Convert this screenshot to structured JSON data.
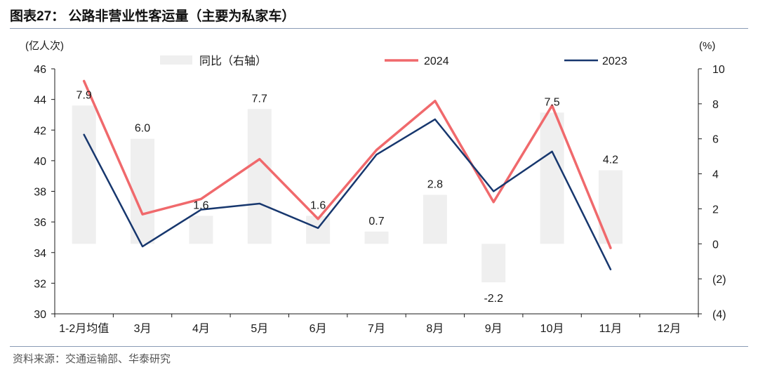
{
  "title": "图表27： 公路非营业性客运量（主要为私家车）",
  "source": "资料来源：交通运输部、华泰研究",
  "colors": {
    "series_2024": "#f0696c",
    "series_2023": "#17376e",
    "bars": "#efefef",
    "axis": "#1a1a1a",
    "rule": "#8a9bb5"
  },
  "chart_data": {
    "type": "bar+line",
    "categories": [
      "1-2月均值",
      "3月",
      "4月",
      "5月",
      "6月",
      "7月",
      "8月",
      "9月",
      "10月",
      "11月",
      "12月"
    ],
    "left_axis": {
      "label": "(亿人次)",
      "range": [
        30,
        46
      ],
      "ticks": [
        "30",
        "32",
        "34",
        "36",
        "38",
        "40",
        "42",
        "44",
        "46"
      ],
      "tick_values": [
        30,
        32,
        34,
        36,
        38,
        40,
        42,
        44,
        46
      ]
    },
    "right_axis": {
      "label": "(%)",
      "range": [
        -4,
        10
      ],
      "ticks": [
        "(4)",
        "(2)",
        "0",
        "2",
        "4",
        "6",
        "8",
        "10"
      ],
      "tick_values": [
        -4,
        -2,
        0,
        2,
        4,
        6,
        8,
        10
      ]
    },
    "bars": {
      "name": "同比（右轴）",
      "axis": "right",
      "values": [
        7.9,
        6.0,
        1.6,
        7.7,
        1.6,
        0.7,
        2.8,
        -2.2,
        7.5,
        4.2,
        null
      ],
      "labels": [
        "7.9",
        "6.0",
        "1.6",
        "7.7",
        "1.6",
        "0.7",
        "2.8",
        "-2.2",
        "7.5",
        "4.2",
        ""
      ]
    },
    "series": [
      {
        "name": "2024",
        "axis": "left",
        "values": [
          45.2,
          36.5,
          37.5,
          40.1,
          36.2,
          40.7,
          43.9,
          37.3,
          43.6,
          34.3,
          null
        ]
      },
      {
        "name": "2023",
        "axis": "left",
        "values": [
          41.7,
          34.4,
          36.8,
          37.2,
          35.6,
          40.4,
          42.7,
          38.0,
          40.6,
          32.9,
          null
        ]
      }
    ],
    "legend_position": "top"
  }
}
